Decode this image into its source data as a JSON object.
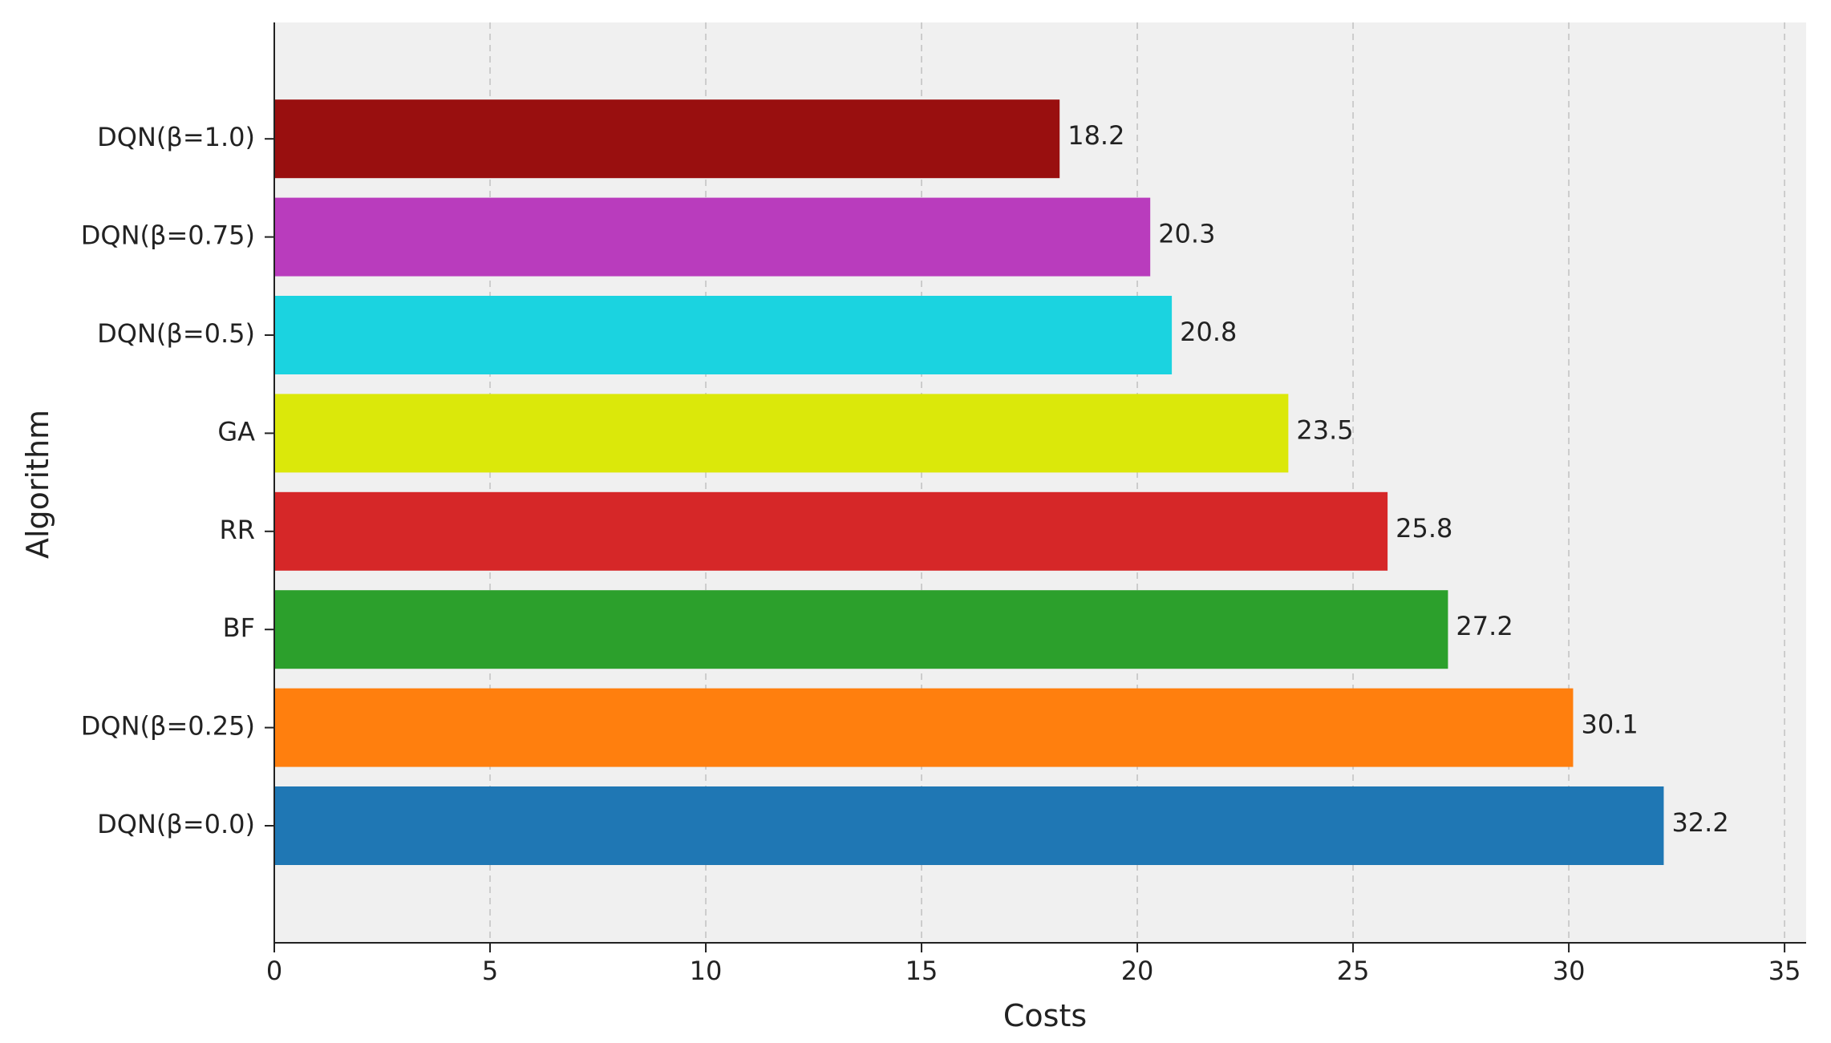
{
  "chart_data": {
    "type": "bar",
    "orientation": "horizontal",
    "title": "",
    "xlabel": "Costs",
    "ylabel": "Algorithm",
    "xlim": [
      0,
      35.5
    ],
    "xticks": [
      0,
      5,
      10,
      15,
      20,
      25,
      30,
      35
    ],
    "grid": "vertical-dashed",
    "categories": [
      "DQN(β=0.0)",
      "DQN(β=0.25)",
      "BF",
      "RR",
      "GA",
      "DQN(β=0.5)",
      "DQN(β=0.75)",
      "DQN(β=1.0)"
    ],
    "values": [
      32.2,
      30.1,
      27.2,
      25.8,
      23.5,
      20.8,
      20.3,
      18.2
    ],
    "value_labels": [
      "32.2",
      "30.1",
      "27.2",
      "25.8",
      "23.5",
      "20.8",
      "20.3",
      "18.2"
    ],
    "colors": [
      "#1f77b4",
      "#ff7f0e",
      "#2ca02c",
      "#d62728",
      "#dbe80a",
      "#1bd3e0",
      "#b93cbd",
      "#990f0f"
    ],
    "background": "#f0f0f0"
  }
}
